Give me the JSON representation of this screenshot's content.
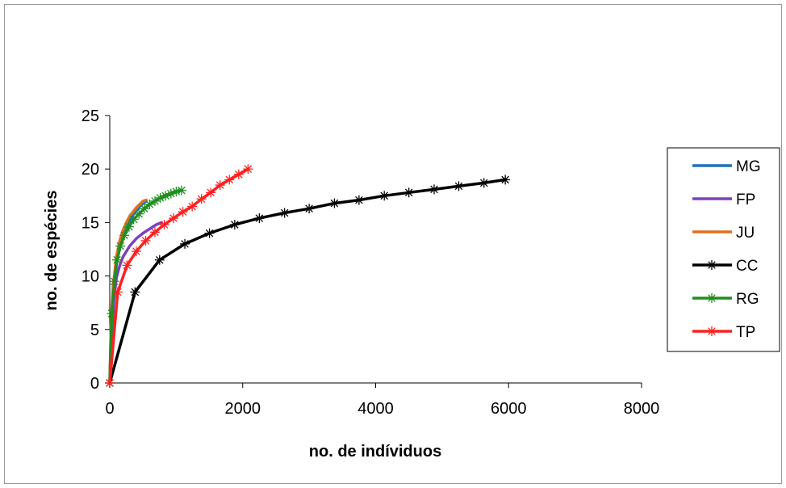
{
  "chart_data": {
    "type": "line",
    "title": "",
    "xlabel": "no. de indíviduos",
    "ylabel": "no. de espécies",
    "xlim": [
      0,
      8000
    ],
    "ylim": [
      0,
      25
    ],
    "xticks": [
      0,
      2000,
      4000,
      6000,
      8000
    ],
    "yticks": [
      0,
      5,
      10,
      15,
      20,
      25
    ],
    "xtick_labels": [
      "0",
      "2000",
      "4000",
      "6000",
      "8000"
    ],
    "ytick_labels": [
      "0",
      "5",
      "10",
      "15",
      "20",
      "25"
    ],
    "grid": false,
    "legend_position": "right",
    "series": [
      {
        "name": "MG",
        "color": "#1f6fbf",
        "marker": "none",
        "x": [
          0,
          20,
          50,
          100,
          150,
          200,
          250,
          300,
          350,
          400,
          450,
          500,
          550
        ],
        "y": [
          0,
          5,
          8.5,
          11.2,
          12.8,
          13.8,
          14.6,
          15.2,
          15.7,
          16.1,
          16.5,
          16.8,
          17
        ]
      },
      {
        "name": "FP",
        "color": "#7f3fbf",
        "marker": "none",
        "x": [
          0,
          30,
          60,
          100,
          150,
          200,
          300,
          400,
          500,
          600,
          700,
          780
        ],
        "y": [
          0,
          4.5,
          7.5,
          9.8,
          11.0,
          11.8,
          12.8,
          13.5,
          14.0,
          14.4,
          14.8,
          15
        ]
      },
      {
        "name": "JU",
        "color": "#e07020",
        "marker": "none",
        "x": [
          0,
          20,
          50,
          100,
          150,
          200,
          250,
          300,
          350,
          400,
          450,
          500,
          550
        ],
        "y": [
          0,
          5.5,
          9,
          11.8,
          13.3,
          14.3,
          15.0,
          15.6,
          16.0,
          16.4,
          16.7,
          17.0,
          17.1
        ]
      },
      {
        "name": "CC",
        "color": "#000000",
        "marker": "star",
        "x": [
          0,
          380,
          750,
          1130,
          1500,
          1880,
          2250,
          2630,
          3000,
          3380,
          3750,
          4130,
          4500,
          4880,
          5250,
          5630,
          5950
        ],
        "y": [
          0,
          8.5,
          11.5,
          13.0,
          14.0,
          14.8,
          15.4,
          15.9,
          16.3,
          16.8,
          17.1,
          17.5,
          17.8,
          18.1,
          18.4,
          18.7,
          19
        ]
      },
      {
        "name": "RG",
        "color": "#1f8f1f",
        "marker": "star",
        "x": [
          0,
          30,
          70,
          110,
          160,
          220,
          290,
          360,
          440,
          520,
          600,
          680,
          760,
          840,
          920,
          1000,
          1080
        ],
        "y": [
          0,
          6.5,
          9.5,
          11.5,
          12.8,
          13.8,
          14.6,
          15.3,
          15.8,
          16.3,
          16.7,
          17.0,
          17.3,
          17.5,
          17.7,
          17.9,
          18
        ]
      },
      {
        "name": "TP",
        "color": "#ff2020",
        "marker": "star",
        "x": [
          0,
          120,
          260,
          400,
          540,
          680,
          820,
          960,
          1100,
          1240,
          1380,
          1520,
          1660,
          1800,
          1940,
          2080
        ],
        "y": [
          0,
          8.5,
          11.0,
          12.3,
          13.3,
          14.1,
          14.8,
          15.4,
          16.0,
          16.5,
          17.2,
          17.8,
          18.5,
          19.0,
          19.5,
          20
        ]
      }
    ]
  }
}
